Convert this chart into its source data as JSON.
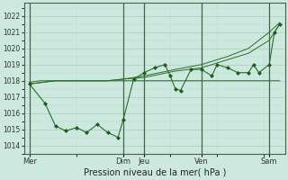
{
  "title": "Pression niveau de la mer( hPa )",
  "bg_color": "#cce8df",
  "plot_bg_color": "#cce8df",
  "grid_major_color": "#aaccbb",
  "grid_minor_color": "#bbddcc",
  "line_color": "#2a6e2a",
  "marker_color": "#1a5c1a",
  "ylim": [
    1013.5,
    1022.8
  ],
  "yticks": [
    1014,
    1015,
    1016,
    1017,
    1018,
    1019,
    1020,
    1021,
    1022
  ],
  "x_day_labels": [
    "Mer",
    "Dim",
    "Jeu",
    "Ven",
    "Sam"
  ],
  "x_day_positions": [
    0,
    18,
    22,
    33,
    46
  ],
  "vlines_x": [
    0,
    18,
    22,
    33,
    46
  ],
  "xlim": [
    -1,
    49
  ],
  "series_trend1": [
    [
      0,
      1017.8
    ],
    [
      5,
      1018.0
    ],
    [
      10,
      1018.0
    ],
    [
      15,
      1018.0
    ],
    [
      18,
      1018.1
    ],
    [
      22,
      1018.2
    ],
    [
      25,
      1018.4
    ],
    [
      28,
      1018.6
    ],
    [
      33,
      1018.8
    ],
    [
      38,
      1019.3
    ],
    [
      42,
      1019.7
    ],
    [
      46,
      1020.5
    ],
    [
      48,
      1021.5
    ]
  ],
  "series_trend2": [
    [
      0,
      1017.8
    ],
    [
      5,
      1018.0
    ],
    [
      10,
      1018.0
    ],
    [
      15,
      1018.0
    ],
    [
      18,
      1018.1
    ],
    [
      22,
      1018.3
    ],
    [
      25,
      1018.5
    ],
    [
      28,
      1018.7
    ],
    [
      33,
      1019.0
    ],
    [
      38,
      1019.5
    ],
    [
      42,
      1020.0
    ],
    [
      46,
      1021.0
    ],
    [
      48,
      1021.6
    ]
  ],
  "series_flat": [
    [
      0,
      1017.9
    ],
    [
      2,
      1018.0
    ],
    [
      5,
      1018.0
    ],
    [
      8,
      1018.0
    ],
    [
      12,
      1018.0
    ],
    [
      15,
      1018.0
    ],
    [
      18,
      1018.0
    ],
    [
      22,
      1018.0
    ],
    [
      25,
      1018.0
    ],
    [
      28,
      1018.0
    ],
    [
      33,
      1018.0
    ],
    [
      36,
      1018.0
    ],
    [
      40,
      1018.0
    ],
    [
      44,
      1018.0
    ],
    [
      46,
      1018.0
    ],
    [
      48,
      1018.0
    ]
  ],
  "series_volatile": [
    [
      0,
      1017.8
    ],
    [
      3,
      1016.6
    ],
    [
      5,
      1015.2
    ],
    [
      7,
      1014.9
    ],
    [
      9,
      1015.1
    ],
    [
      11,
      1014.8
    ],
    [
      13,
      1015.3
    ],
    [
      15,
      1014.8
    ],
    [
      17,
      1014.5
    ],
    [
      18,
      1015.6
    ],
    [
      20,
      1018.1
    ],
    [
      22,
      1018.5
    ],
    [
      24,
      1018.8
    ],
    [
      26,
      1019.0
    ],
    [
      27,
      1018.3
    ],
    [
      28,
      1017.5
    ],
    [
      29,
      1017.4
    ],
    [
      31,
      1018.7
    ],
    [
      33,
      1018.7
    ],
    [
      35,
      1018.3
    ],
    [
      36,
      1019.0
    ],
    [
      38,
      1018.8
    ],
    [
      40,
      1018.5
    ],
    [
      42,
      1018.5
    ],
    [
      43,
      1019.0
    ],
    [
      44,
      1018.5
    ],
    [
      46,
      1019.0
    ],
    [
      47,
      1021.0
    ],
    [
      48,
      1021.5
    ]
  ]
}
